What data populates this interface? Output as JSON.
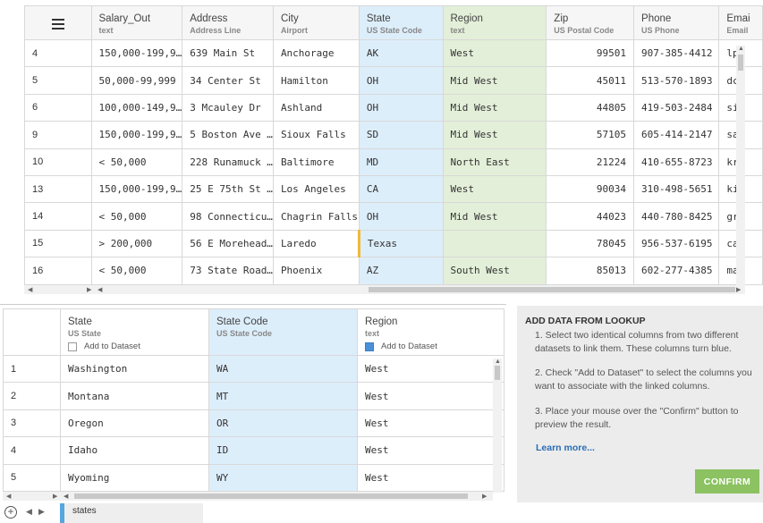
{
  "top_grid": {
    "menu_icon": "hamburger-icon",
    "columns": [
      {
        "name": "Salary_Out",
        "type": "text",
        "highlight": "none"
      },
      {
        "name": "Address",
        "type": "Address Line",
        "highlight": "none"
      },
      {
        "name": "City",
        "type": "Airport",
        "highlight": "none"
      },
      {
        "name": "State",
        "type": "US State Code",
        "highlight": "blue"
      },
      {
        "name": "Region",
        "type": "text",
        "highlight": "green"
      },
      {
        "name": "Zip",
        "type": "US Postal Code",
        "highlight": "none"
      },
      {
        "name": "Phone",
        "type": "US Phone",
        "highlight": "none"
      },
      {
        "name": "Emai",
        "type": "Email",
        "highlight": "none"
      }
    ],
    "rows": [
      {
        "id": "4",
        "cells": [
          "150,000-199,9…",
          "639 Main St",
          "Anchorage",
          "AK",
          "West",
          "99501",
          "907-385-4412",
          "lp"
        ]
      },
      {
        "id": "5",
        "cells": [
          "50,000-99,999",
          "34 Center St",
          "Hamilton",
          "OH",
          "Mid West",
          "45011",
          "513-570-1893",
          "dc"
        ]
      },
      {
        "id": "6",
        "cells": [
          "100,000-149,9…",
          "3 Mcauley Dr",
          "Ashland",
          "OH",
          "Mid West",
          "44805",
          "419-503-2484",
          "si"
        ]
      },
      {
        "id": "9",
        "cells": [
          "150,000-199,9…",
          "5 Boston Ave …",
          "Sioux Falls",
          "SD",
          "Mid West",
          "57105",
          "605-414-2147",
          "sa"
        ]
      },
      {
        "id": "10",
        "cells": [
          "< 50,000",
          "228 Runamuck …",
          "Baltimore",
          "MD",
          "North East",
          "21224",
          "410-655-8723",
          "kr"
        ]
      },
      {
        "id": "13",
        "cells": [
          "150,000-199,9…",
          "25 E 75th St …",
          "Los Angeles",
          "CA",
          "West",
          "90034",
          "310-498-5651",
          "ki"
        ]
      },
      {
        "id": "14",
        "cells": [
          "< 50,000",
          "98 Connecticu…",
          "Chagrin Falls",
          "OH",
          "Mid West",
          "44023",
          "440-780-8425",
          "gr"
        ]
      },
      {
        "id": "15",
        "cells": [
          "> 200,000",
          "56 E Morehead…",
          "Laredo",
          "Texas",
          "",
          "78045",
          "956-537-6195",
          "ca"
        ]
      },
      {
        "id": "16",
        "cells": [
          "< 50,000",
          "73 State Road…",
          "Phoenix",
          "AZ",
          "South West",
          "85013",
          "602-277-4385",
          "ma"
        ]
      }
    ],
    "colors": {
      "blue": "#ddeefb",
      "green": "#e3efd8",
      "invalid": "#f0b93c"
    }
  },
  "lookup_grid": {
    "columns": [
      {
        "name": "State",
        "type": "US State",
        "add_to_dataset": "Add to Dataset",
        "checked": false,
        "highlight": "none"
      },
      {
        "name": "State Code",
        "type": "US State Code",
        "add_to_dataset": "",
        "checked": false,
        "highlight": "blue"
      },
      {
        "name": "Region",
        "type": "text",
        "add_to_dataset": "Add to Dataset",
        "checked": true,
        "highlight": "none"
      }
    ],
    "rows": [
      {
        "id": "1",
        "cells": [
          "Washington",
          "WA",
          "West"
        ]
      },
      {
        "id": "2",
        "cells": [
          "Montana",
          "MT",
          "West"
        ]
      },
      {
        "id": "3",
        "cells": [
          "Oregon",
          "OR",
          "West"
        ]
      },
      {
        "id": "4",
        "cells": [
          "Idaho",
          "ID",
          "West"
        ]
      },
      {
        "id": "5",
        "cells": [
          "Wyoming",
          "WY",
          "West"
        ]
      }
    ]
  },
  "panel": {
    "title": "ADD DATA FROM LOOKUP",
    "step1": "1. Select two identical columns from two different datasets to link them. These columns turn blue.",
    "step2": "2. Check \"Add to Dataset\" to select the columns you want to associate with the linked columns.",
    "step3": "3. Place your mouse over the \"Confirm\" button to preview the result.",
    "learn_more": "Learn more...",
    "confirm_label": "CONFIRM",
    "confirm_color": "#8cc261"
  },
  "tabbar": {
    "add_icon": "plus-circle-icon",
    "prev_icon": "triangle-left-icon",
    "next_icon": "triangle-right-icon",
    "sheet_name": "states",
    "sheet_color": "#58a6dd"
  }
}
